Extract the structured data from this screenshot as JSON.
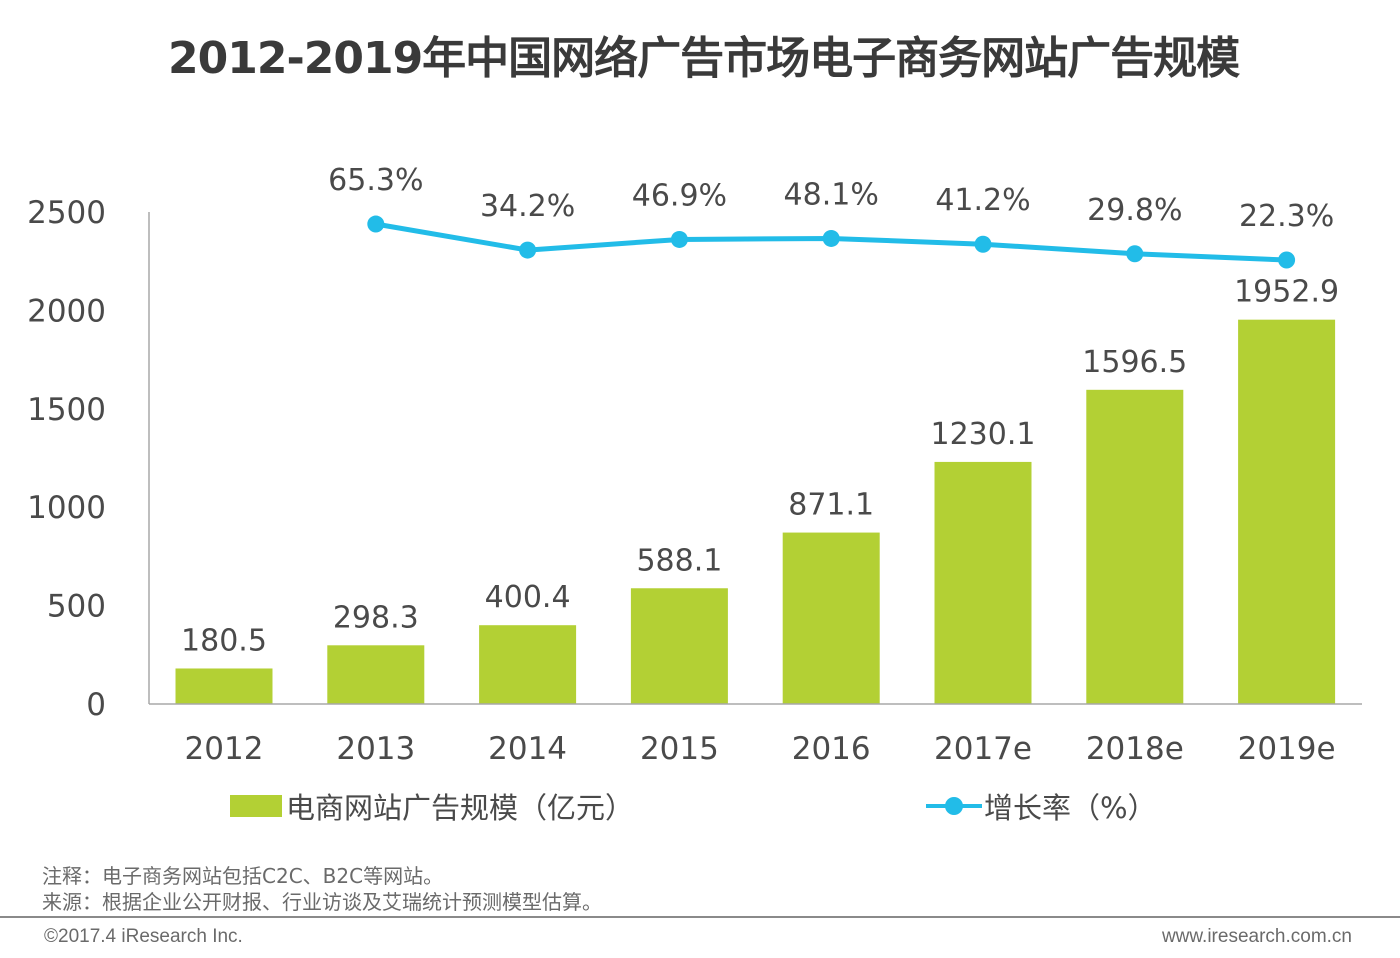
{
  "title": "2012-2019年中国网络广告市场电子商务网站广告规模",
  "colors": {
    "bar": "#b3d034",
    "line": "#22bce8",
    "axis": "#a0a0a0",
    "text": "#4a4a4a"
  },
  "legend": {
    "bar_label": "电商网站广告规模（亿元）",
    "line_label": "增长率（%）"
  },
  "notes": {
    "note": "注释：电子商务网站包括C2C、B2C等网站。",
    "source": "来源：根据企业公开财报、行业访谈及艾瑞统计预测模型估算。"
  },
  "footer": {
    "copyright": "©2017.4 iResearch Inc.",
    "website": "www.iresearch.com.cn"
  },
  "chart_data": {
    "type": "bar",
    "title": "2012-2019年中国网络广告市场电子商务网站广告规模",
    "xlabel": "",
    "ylabel": "",
    "categories": [
      "2012",
      "2013",
      "2014",
      "2015",
      "2016",
      "2017e",
      "2018e",
      "2019e"
    ],
    "ylim": [
      0,
      2500
    ],
    "yticks": [
      0,
      500,
      1000,
      1500,
      2000,
      2500
    ],
    "grid": false,
    "legend_position": "bottom",
    "series": [
      {
        "name": "电商网站广告规模（亿元）",
        "type": "bar",
        "axis": "primary",
        "values": [
          180.5,
          298.3,
          400.4,
          588.1,
          871.1,
          1230.1,
          1596.5,
          1952.9
        ],
        "labels": [
          "180.5",
          "298.3",
          "400.4",
          "588.1",
          "871.1",
          "1230.1",
          "1596.5",
          "1952.9"
        ]
      },
      {
        "name": "增长率（%）",
        "type": "line",
        "axis": "secondary",
        "values": [
          null,
          65.3,
          34.2,
          46.9,
          48.1,
          41.2,
          29.8,
          22.3
        ],
        "labels": [
          "",
          "65.3%",
          "34.2%",
          "46.9%",
          "48.1%",
          "41.2%",
          "29.8%",
          "22.3%"
        ]
      }
    ]
  }
}
